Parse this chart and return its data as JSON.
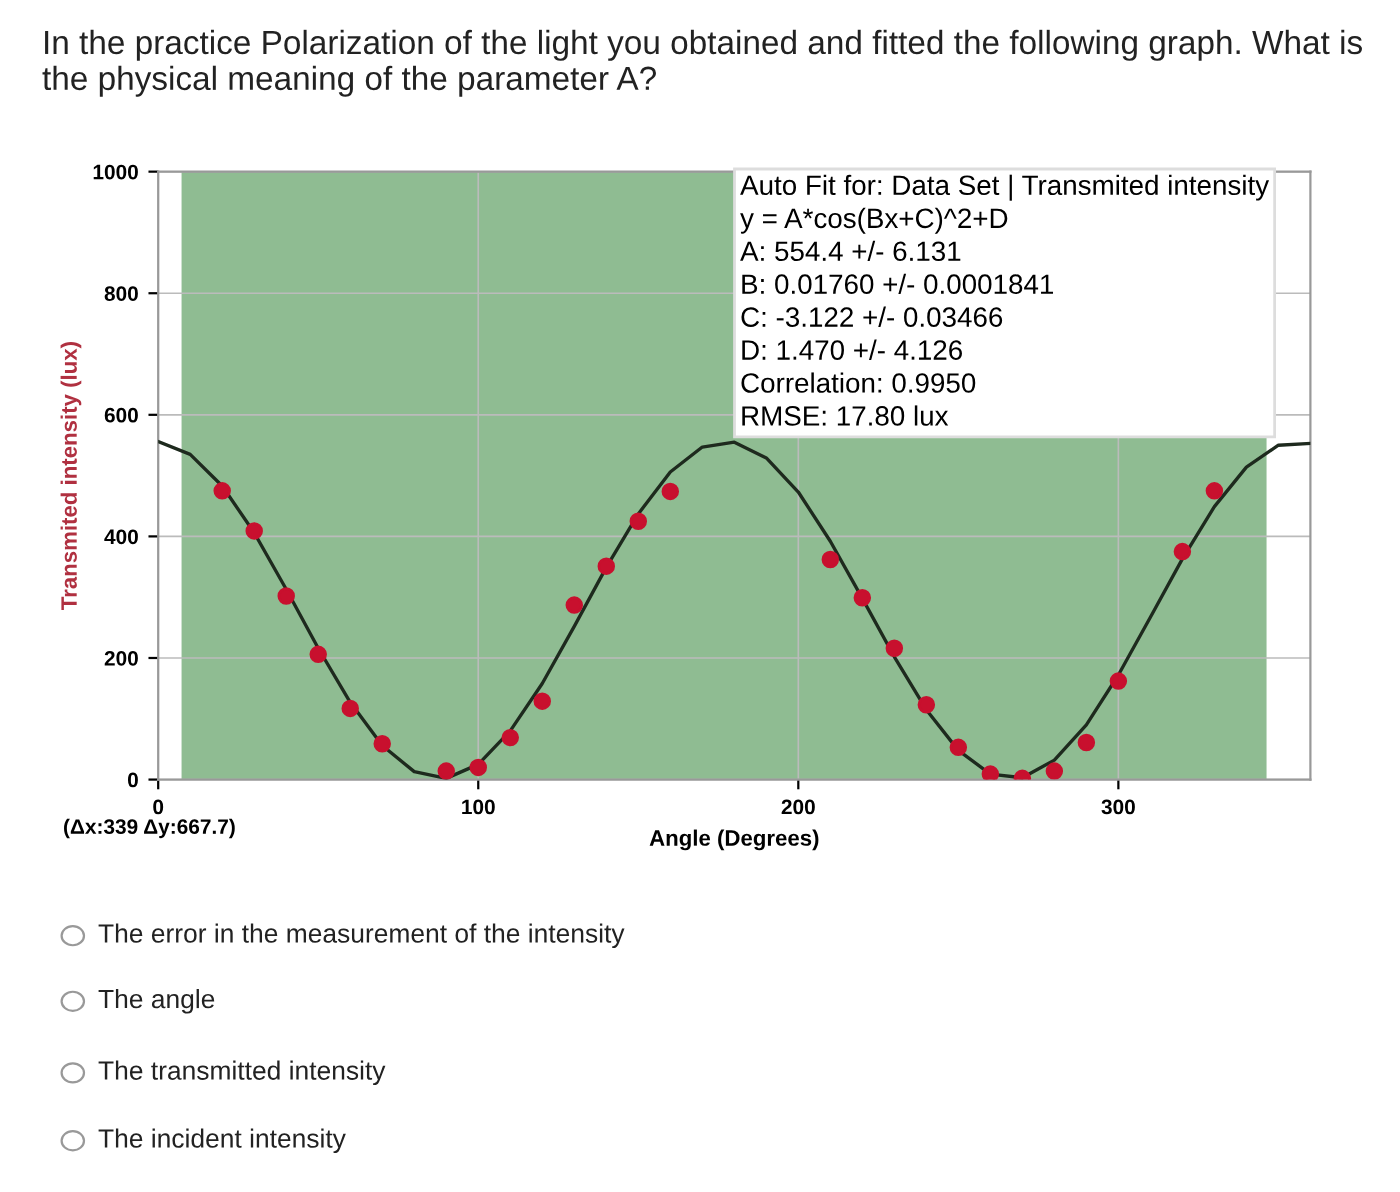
{
  "chart_data": {
    "type": "scatter",
    "title": "In the practice Polarization of the light you obtained and fitted the following graph. What is the physical meaning of the parameter A?",
    "xlabel": "Angle (Degrees)",
    "ylabel": "Transmited intensity (lux)",
    "xlim": [
      0,
      360
    ],
    "ylim": [
      0,
      1000
    ],
    "xticks": [
      0,
      100,
      200,
      300
    ],
    "yticks": [
      0,
      200,
      400,
      600,
      800,
      1000
    ],
    "grid": true,
    "legend": false,
    "bands": [
      {
        "axis": "x",
        "from": 7.3,
        "to": 346.3,
        "color": "#6aa66e"
      }
    ],
    "series": [
      {
        "marker": "circle",
        "color": "#c8102e",
        "x": [
          20,
          30,
          40,
          50,
          60,
          70,
          90,
          100,
          110,
          120,
          130,
          140,
          150,
          160,
          210,
          220,
          230,
          240,
          250,
          260,
          270,
          280,
          290,
          300,
          320,
          330
        ],
        "values": [
          475,
          409,
          302,
          206,
          117,
          59,
          14,
          20,
          69,
          129,
          287,
          351,
          425,
          474,
          362,
          299,
          216,
          123,
          53,
          9,
          2,
          14,
          61,
          162,
          375,
          475
        ]
      },
      {
        "type": "line",
        "marker": "none",
        "color": "#1e2a1e",
        "x": [
          0,
          10,
          20,
          30,
          40,
          50,
          60,
          70,
          80,
          90,
          100,
          110,
          120,
          130,
          140,
          150,
          160,
          170,
          180,
          190,
          200,
          210,
          220,
          230,
          240,
          250,
          260,
          270,
          280,
          290,
          300,
          310,
          320,
          330,
          340,
          350,
          360
        ],
        "values": [
          556,
          535,
          483,
          406,
          313,
          216,
          127,
          56,
          13,
          2,
          25,
          80,
          158,
          252,
          349,
          437,
          506,
          547,
          555,
          529,
          473,
          392,
          298,
          202,
          115,
          48,
          9,
          3,
          32,
          90,
          172,
          267,
          363,
          449,
          514,
          550,
          553
        ]
      }
    ],
    "annotations": [
      "Auto Fit for: Data Set | Transmited intensity\ny = A*cos(Bx+C)^2+D\nA: 554.4 +/- 6.131\nB: 0.01760 +/- 0.0001841\nC: -3.122 +/- 0.03466\nD: 1.470 +/- 4.126\nCorrelation: 0.9950\nRMSE: 17.80 lux",
      "(Δx:339 Δy:667.7)",
      "The error in the measurement of the intensity",
      "The angle",
      "The transmitted intensity",
      "The incident intensity"
    ]
  }
}
